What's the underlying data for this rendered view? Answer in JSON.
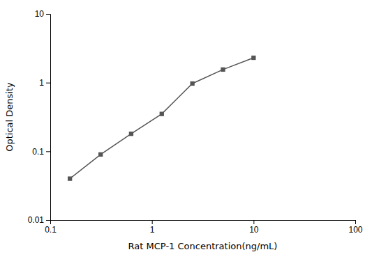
{
  "chart_data": {
    "type": "line",
    "x": [
      0.156,
      0.313,
      0.625,
      1.25,
      2.5,
      5.0,
      10.0
    ],
    "values": [
      0.04,
      0.09,
      0.18,
      0.35,
      0.97,
      1.55,
      2.3
    ],
    "xlabel": "Rat MCP-1 Concentration(ng/mL)",
    "ylabel": "Optical Density",
    "xlim": [
      0.1,
      100
    ],
    "ylim": [
      0.01,
      10
    ],
    "xticks": [
      0.1,
      1,
      10,
      100
    ],
    "yticks": [
      0.01,
      0.1,
      1,
      10
    ],
    "log": true,
    "grid": false,
    "color": "#555555",
    "marker": "square"
  }
}
